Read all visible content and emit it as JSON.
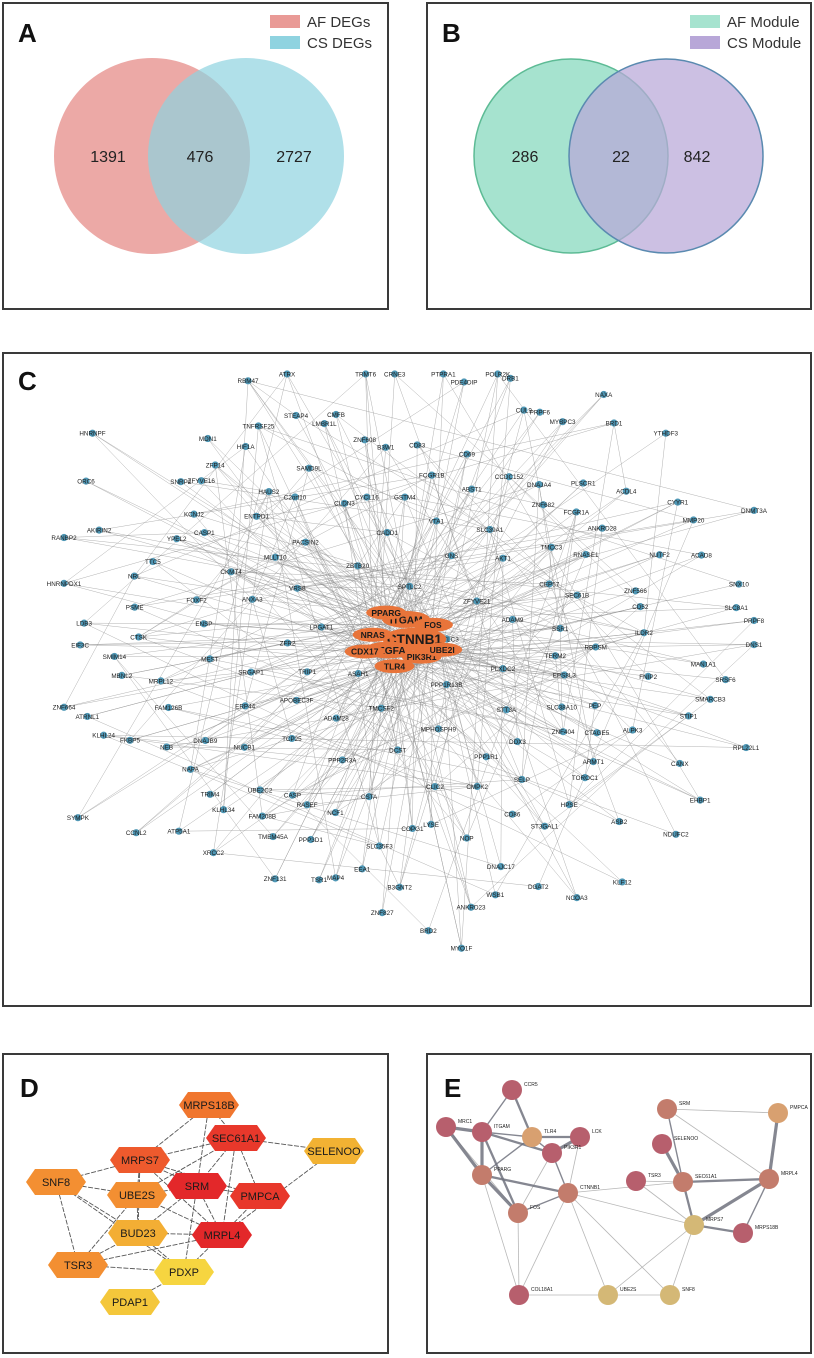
{
  "panel_a": {
    "letter": "A",
    "legend": [
      {
        "label": "AF DEGs",
        "color": "#e99a96"
      },
      {
        "label": "CS DEGs",
        "color": "#8fd3e0"
      }
    ],
    "counts": {
      "left_only": "1391",
      "overlap": "476",
      "right_only": "2727"
    }
  },
  "panel_b": {
    "letter": "B",
    "legend": [
      {
        "label": "AF Module",
        "color": "#a6e3cf"
      },
      {
        "label": "CS Module",
        "color": "#b8a7d8"
      }
    ],
    "counts": {
      "left_only": "286",
      "overlap": "22",
      "right_only": "842"
    }
  },
  "panel_c": {
    "letter": "C",
    "node_color": "#4f97b5",
    "hub_color": "#e8743a",
    "hub_genes": [
      "CTNNB1",
      "VEGFA",
      "ITGAM",
      "PIK3R1",
      "NRAS",
      "FOS",
      "TLR4",
      "PPARG",
      "UBE2I",
      "CDX17"
    ],
    "genes": [
      "SPTLC3",
      "ASAH1",
      "SPTLC2",
      "PPP1R13B",
      "LPGAT1",
      "ZFYVE21",
      "TMCSF2",
      "ZBTB20",
      "PLXDC2",
      "TRIP1",
      "GNS",
      "MPHOSPH9",
      "VRS8",
      "ADAM9",
      "ADAM28",
      "CADD1",
      "STT3A",
      "ZFR2",
      "AKT1",
      "DCST",
      "PACSIN2",
      "TERM2",
      "APOBEC3F",
      "VTA1",
      "PPP1R1",
      "ANXA3",
      "CEP57",
      "PPP2R3A",
      "CLDN3",
      "SLC38A10",
      "SRGAP1",
      "SLC39A1",
      "CLIC2",
      "MLLT10",
      "SSR1",
      "TCP25",
      "GSTM4",
      "DDX3",
      "ENSP",
      "TMCC3",
      "CSTA",
      "C2orf10",
      "EPS8L3",
      "ERP44",
      "ABST1",
      "CMPK2",
      "CKMT4",
      "SEC61B",
      "CASP",
      "CYCL16",
      "ZNF404",
      "MEST",
      "ZNF682",
      "COPG1",
      "ENTPD1",
      "RBPSM",
      "NUCB1",
      "FCGR1B",
      "SELP",
      "FOXF2",
      "RNASE1",
      "NCF1",
      "SAMD9L",
      "PEP",
      "FAM126B",
      "CCDC152",
      "NOP",
      "CASP1",
      "CD52",
      "UBE2C2",
      "B3W1",
      "TOROC1",
      "CTSK",
      "FCGR1A",
      "SLC35F3",
      "HAUS2",
      "FNIP2",
      "DNAJB9",
      "CD69",
      "CD86",
      "TTC5",
      "NUTF2",
      "RASEF",
      "LMBR1L",
      "CTAGE5",
      "MRPL12",
      "DNAJA4",
      "LYSE",
      "SNRP2",
      "ILDR2",
      "TRIM4",
      "CD83",
      "HPSE",
      "PSME",
      "ANKRD28",
      "MAP4",
      "TNFRSF25",
      "STIP1",
      "FKBP5",
      "CUL9",
      "DNAJC17",
      "YPEL2",
      "ZNF566",
      "FAM208B",
      "ZNF608",
      "ARMT1",
      "SMIM14",
      "PLSCR1",
      "B3GNT2",
      "ZFP14",
      "MAN1A1",
      "NAPA",
      "PDE4DIP",
      "ST3GAL1",
      "NRL",
      "MMP20",
      "PPP3D1",
      "STEAP4",
      "ALPK3",
      "ATRNL1",
      "MYBPC3",
      "ANKRD23",
      "KCNJ2",
      "SLC8A1",
      "KLHL34",
      "CRNE3",
      "ASB2",
      "LDB3",
      "ACDL4",
      "EEA1",
      "HIF1A",
      "SMARCB3",
      "NEB",
      "DRB1",
      "DGAT2",
      "AKIRIN2",
      "ACAD8",
      "TMEM45A",
      "CMFB",
      "EHBP1",
      "MBNL2",
      "BRD1",
      "BRD2",
      "ZFYVE16",
      "DNS1",
      "CCNL2",
      "PTPRA1",
      "KLF12",
      "HNRNPDX1",
      "CYYR1",
      "TSR1",
      "RBM47",
      "RPL22L1",
      "KLHL24",
      "PRPF6",
      "WSB1",
      "ORC6",
      "SNX10",
      "XRCC2",
      "TRMT6",
      "NDUFC2",
      "EIF3C",
      "YTHDF3",
      "ZNF827",
      "MDN1",
      "SRSF6",
      "SYMPK",
      "POLR2K",
      "NCOA3",
      "RANBP2",
      "DNMT3A",
      "ZNF131",
      "ATRX",
      "CANX",
      "ZNF664",
      "NAXA",
      "MYO1F",
      "HNRNPF",
      "PRPF8",
      "ATP5A1"
    ]
  },
  "panel_d": {
    "letter": "D",
    "nodes": [
      {
        "id": "MRPS18B",
        "color": "#f0762e"
      },
      {
        "id": "SEC61A1",
        "color": "#e8382b"
      },
      {
        "id": "SELENOO",
        "color": "#f2b233"
      },
      {
        "id": "MRPS7",
        "color": "#ee5a2d"
      },
      {
        "id": "SNF8",
        "color": "#f38f32"
      },
      {
        "id": "UBE2S",
        "color": "#f38f32"
      },
      {
        "id": "SRM",
        "color": "#e3282a"
      },
      {
        "id": "PMPCA",
        "color": "#e8382b"
      },
      {
        "id": "BUD23",
        "color": "#f3ae34"
      },
      {
        "id": "MRPL4",
        "color": "#e3282a"
      },
      {
        "id": "TSR3",
        "color": "#f38f32"
      },
      {
        "id": "PDXP",
        "color": "#f6d540"
      },
      {
        "id": "PDAP1",
        "color": "#f4c73b"
      }
    ]
  },
  "panel_e": {
    "letter": "E",
    "nodes": [
      {
        "id": "CCR5",
        "color": "#b75f6d"
      },
      {
        "id": "MRC1",
        "color": "#b75f6d"
      },
      {
        "id": "ITGAM",
        "color": "#b75f6d"
      },
      {
        "id": "TLR4",
        "color": "#d8a070"
      },
      {
        "id": "LCK",
        "color": "#b75f6d"
      },
      {
        "id": "PIK3R1",
        "color": "#b75f6d"
      },
      {
        "id": "PPARG",
        "color": "#c37c6c"
      },
      {
        "id": "CTNNB1",
        "color": "#c37c6c"
      },
      {
        "id": "FOS",
        "color": "#c37c6c"
      },
      {
        "id": "COL18A1",
        "color": "#b75f6d"
      },
      {
        "id": "UBE2S",
        "color": "#d4b876"
      },
      {
        "id": "SNF8",
        "color": "#d4b876"
      },
      {
        "id": "SRM",
        "color": "#c37c6c"
      },
      {
        "id": "SELENOO",
        "color": "#b75f6d"
      },
      {
        "id": "TSR3",
        "color": "#b75f6d"
      },
      {
        "id": "SEC61A1",
        "color": "#c37c6c"
      },
      {
        "id": "MRPS7",
        "color": "#d4b876"
      },
      {
        "id": "PMPCA",
        "color": "#d8a070"
      },
      {
        "id": "MRPL4",
        "color": "#c37c6c"
      },
      {
        "id": "MRPS18B",
        "color": "#b75f6d"
      }
    ]
  }
}
